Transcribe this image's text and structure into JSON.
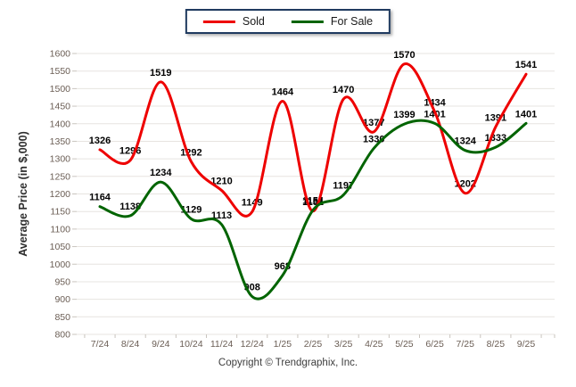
{
  "footer": {
    "copyright": "Copyright © Trendgraphix, Inc."
  },
  "chart_data": {
    "type": "line",
    "title": "",
    "xlabel": "",
    "ylabel": "Average Price (in $,000)",
    "categories": [
      "7/24",
      "8/24",
      "9/24",
      "10/24",
      "11/24",
      "12/24",
      "1/25",
      "2/25",
      "3/25",
      "4/25",
      "5/25",
      "6/25",
      "7/25",
      "8/25",
      "9/25"
    ],
    "series": [
      {
        "name": "Sold",
        "color": "#ee0000",
        "values": [
          1326,
          1296,
          1519,
          1292,
          1210,
          1149,
          1464,
          1151,
          1470,
          1377,
          1570,
          1434,
          1202,
          1391,
          1541
        ]
      },
      {
        "name": "For Sale",
        "color": "#006400",
        "values": [
          1164,
          1138,
          1234,
          1129,
          1113,
          908,
          968,
          1154,
          1197,
          1330,
          1399,
          1401,
          1324,
          1333,
          1401
        ]
      }
    ],
    "ylim": [
      800,
      1600
    ],
    "ytick_step": 50,
    "grid": true,
    "legend_position": "top-center",
    "smoothing": "spline",
    "data_labels": true
  },
  "style": {
    "tick_color": "#6b5e55",
    "grid_color": "#e7e4e0",
    "axis_color": "#c9c4be",
    "data_label_color": "#000000",
    "ylabel_color": "#2e2e2e",
    "legend_border": "#1f3a5f"
  }
}
